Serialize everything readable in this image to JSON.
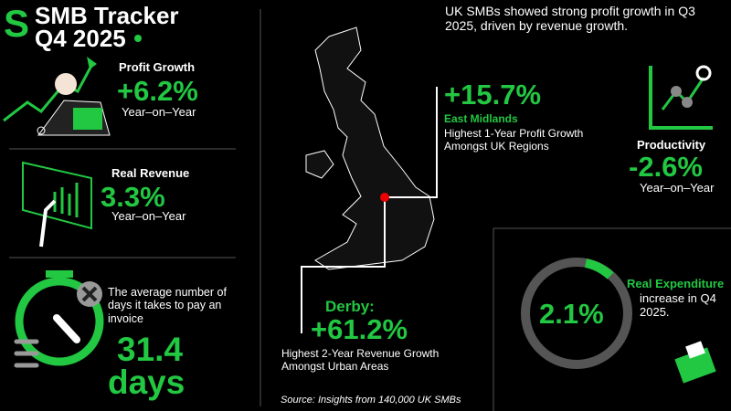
{
  "header": {
    "title": "SMB Tracker",
    "period": "Q4 2025"
  },
  "intro": "UK SMBs showed strong profit growth in Q3 2025, driven by revenue growth.",
  "profit_growth": {
    "label": "Profit Growth",
    "value": "+6.2%",
    "sub": "Year–on–Year"
  },
  "real_revenue": {
    "label": "Real Revenue",
    "value": "3.3%",
    "sub": "Year–on–Year"
  },
  "payment_days": {
    "text": "The average number of days it takes to pay an invoice",
    "value": "31.4",
    "unit": "days"
  },
  "east_midlands": {
    "value": "+15.7%",
    "region": "East Midlands",
    "text": "Highest 1-Year Profit Growth Amongst UK Regions"
  },
  "derby": {
    "label": "Derby:",
    "value": "+61.2%",
    "text": "Highest 2-Year Revenue Growth Amongst Urban Areas"
  },
  "productivity": {
    "label": "Productivity",
    "value": "-2.6%",
    "sub": "Year–on–Year"
  },
  "real_expenditure": {
    "value": "2.1%",
    "highlight": "Real Expenditure",
    "text": "increase in Q4 2025."
  },
  "source": "Source: Insights from 140,000 UK SMBs"
}
